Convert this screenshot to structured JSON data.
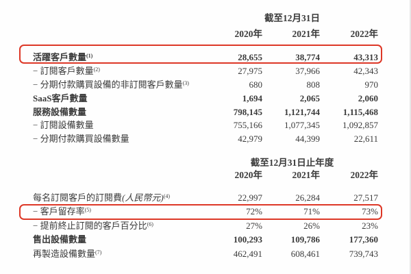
{
  "colors": {
    "background": "#fefefe",
    "text": "#3a3a3a",
    "highlight_box": "#dd3726"
  },
  "table1": {
    "period_header": "截至12月31日",
    "years": [
      "2020年",
      "2021年",
      "2022年"
    ],
    "rows": [
      {
        "label": "活躍客戶數量",
        "sup": "(1)",
        "values": [
          "28,655",
          "38,774",
          "43,313"
        ]
      },
      {
        "label": "− 訂閱客戶數量",
        "sup": "(2)",
        "values": [
          "27,975",
          "37,966",
          "42,343"
        ]
      },
      {
        "label": "− 分期付款購買設備的非訂閱客戶數量",
        "sup": "(3)",
        "values": [
          "680",
          "808",
          "970"
        ]
      },
      {
        "label": "SaaS客戶數量",
        "values": [
          "1,694",
          "2,065",
          "2,060"
        ]
      },
      {
        "label": "服務設備數量",
        "values": [
          "798,145",
          "1,121,744",
          "1,115,468"
        ]
      },
      {
        "label": "− 訂閱設備數量",
        "values": [
          "755,166",
          "1,077,345",
          "1,092,857"
        ]
      },
      {
        "label": "− 分期付款購買設備數量",
        "values": [
          "42,979",
          "44,399",
          "22,611"
        ]
      }
    ]
  },
  "table2": {
    "period_header": "截至12月31日止年度",
    "years": [
      "2020年",
      "2021年",
      "2022年"
    ],
    "rows": [
      {
        "label": "每名訂閱客戶的訂閱費",
        "label_italic": "(人民幣元)",
        "sup": "(4)",
        "values": [
          "22,997",
          "26,284",
          "27,517"
        ]
      },
      {
        "label": "− 客戶留存率",
        "sup": "(5)",
        "values": [
          "72%",
          "71%",
          "73%"
        ]
      },
      {
        "label": "− 提前終止訂閱的客戶百分比",
        "sup": "(6)",
        "values": [
          "27%",
          "26%",
          "23%"
        ]
      },
      {
        "label": "售出設備數量",
        "values": [
          "100,293",
          "109,786",
          "177,360"
        ]
      },
      {
        "label": "再製造設備數量",
        "sup": "(7)",
        "values": [
          "462,491",
          "608,461",
          "739,743"
        ]
      }
    ]
  }
}
